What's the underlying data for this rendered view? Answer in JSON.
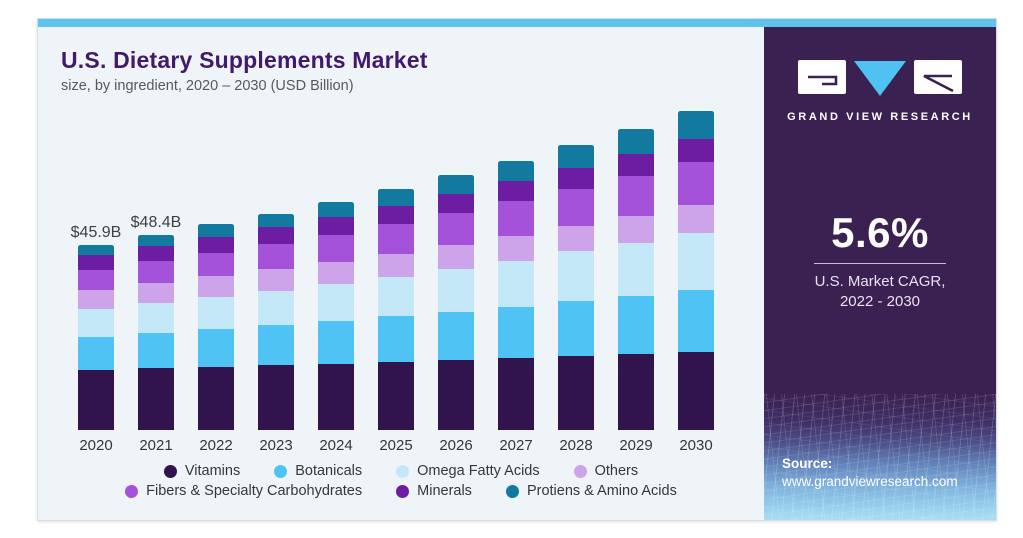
{
  "header": {
    "title": "U.S. Dietary Supplements Market",
    "subtitle": "size, by ingredient, 2020 – 2030 (USD Billion)",
    "title_color": "#42196b"
  },
  "colors": {
    "topbar": "#5ec4ee",
    "panel_bg": "#eef4f8",
    "sidebar_bg": "#3b2052",
    "logo_triangle": "#4fc2f1"
  },
  "chart_data": {
    "type": "bar",
    "stacked": true,
    "unit": "USD Billion",
    "categories": [
      "2020",
      "2021",
      "2022",
      "2023",
      "2024",
      "2025",
      "2026",
      "2027",
      "2028",
      "2029",
      "2030"
    ],
    "series": [
      {
        "name": "Vitamins",
        "color": "#31134d",
        "values": [
          14.9,
          15.3,
          15.7,
          16.1,
          16.5,
          17.0,
          17.4,
          17.9,
          18.4,
          18.8,
          19.4
        ]
      },
      {
        "name": "Botanicals",
        "color": "#4fc3f4",
        "values": [
          8.2,
          8.7,
          9.3,
          9.9,
          10.5,
          11.2,
          12.0,
          12.7,
          13.6,
          14.4,
          15.4
        ]
      },
      {
        "name": "Omega Fatty Acids",
        "color": "#c5e8f9",
        "values": [
          6.9,
          7.5,
          8.0,
          8.6,
          9.2,
          9.9,
          10.6,
          11.4,
          12.3,
          13.2,
          14.1
        ]
      },
      {
        "name": "Others",
        "color": "#cda4e9",
        "values": [
          4.7,
          4.9,
          5.1,
          5.3,
          5.5,
          5.7,
          6.0,
          6.2,
          6.4,
          6.7,
          6.9
        ]
      },
      {
        "name": "Fibers & Specialty Carbohydrates",
        "color": "#a352d9",
        "values": [
          5.0,
          5.4,
          5.8,
          6.2,
          6.7,
          7.3,
          7.9,
          8.5,
          9.2,
          9.9,
          10.7
        ]
      },
      {
        "name": "Minerals",
        "color": "#6c1da1",
        "values": [
          3.7,
          3.9,
          4.1,
          4.2,
          4.4,
          4.6,
          4.8,
          5.0,
          5.2,
          5.5,
          5.7
        ]
      },
      {
        "name": "Protiens & Amino Acids",
        "color": "#12799f",
        "values": [
          2.5,
          2.7,
          3.0,
          3.4,
          3.7,
          4.2,
          4.6,
          5.1,
          5.7,
          6.3,
          6.9
        ]
      }
    ],
    "totals_labeled": {
      "2020": "$45.9B",
      "2021": "$48.4B"
    },
    "legend_rows": [
      [
        "Vitamins",
        "Botanicals",
        "Omega Fatty Acids",
        "Others"
      ],
      [
        "Fibers & Specialty Carbohydrates",
        "Minerals",
        "Protiens & Amino Acids"
      ]
    ],
    "legend_position": "bottom",
    "grid": false,
    "y_axis_shown": false
  },
  "sidebar": {
    "brand": "GRAND VIEW RESEARCH",
    "stat_value": "5.6%",
    "stat_caption_line1": "U.S. Market CAGR,",
    "stat_caption_line2": "2022 - 2030",
    "source_label": "Source:",
    "source_url": "www.grandviewresearch.com"
  }
}
